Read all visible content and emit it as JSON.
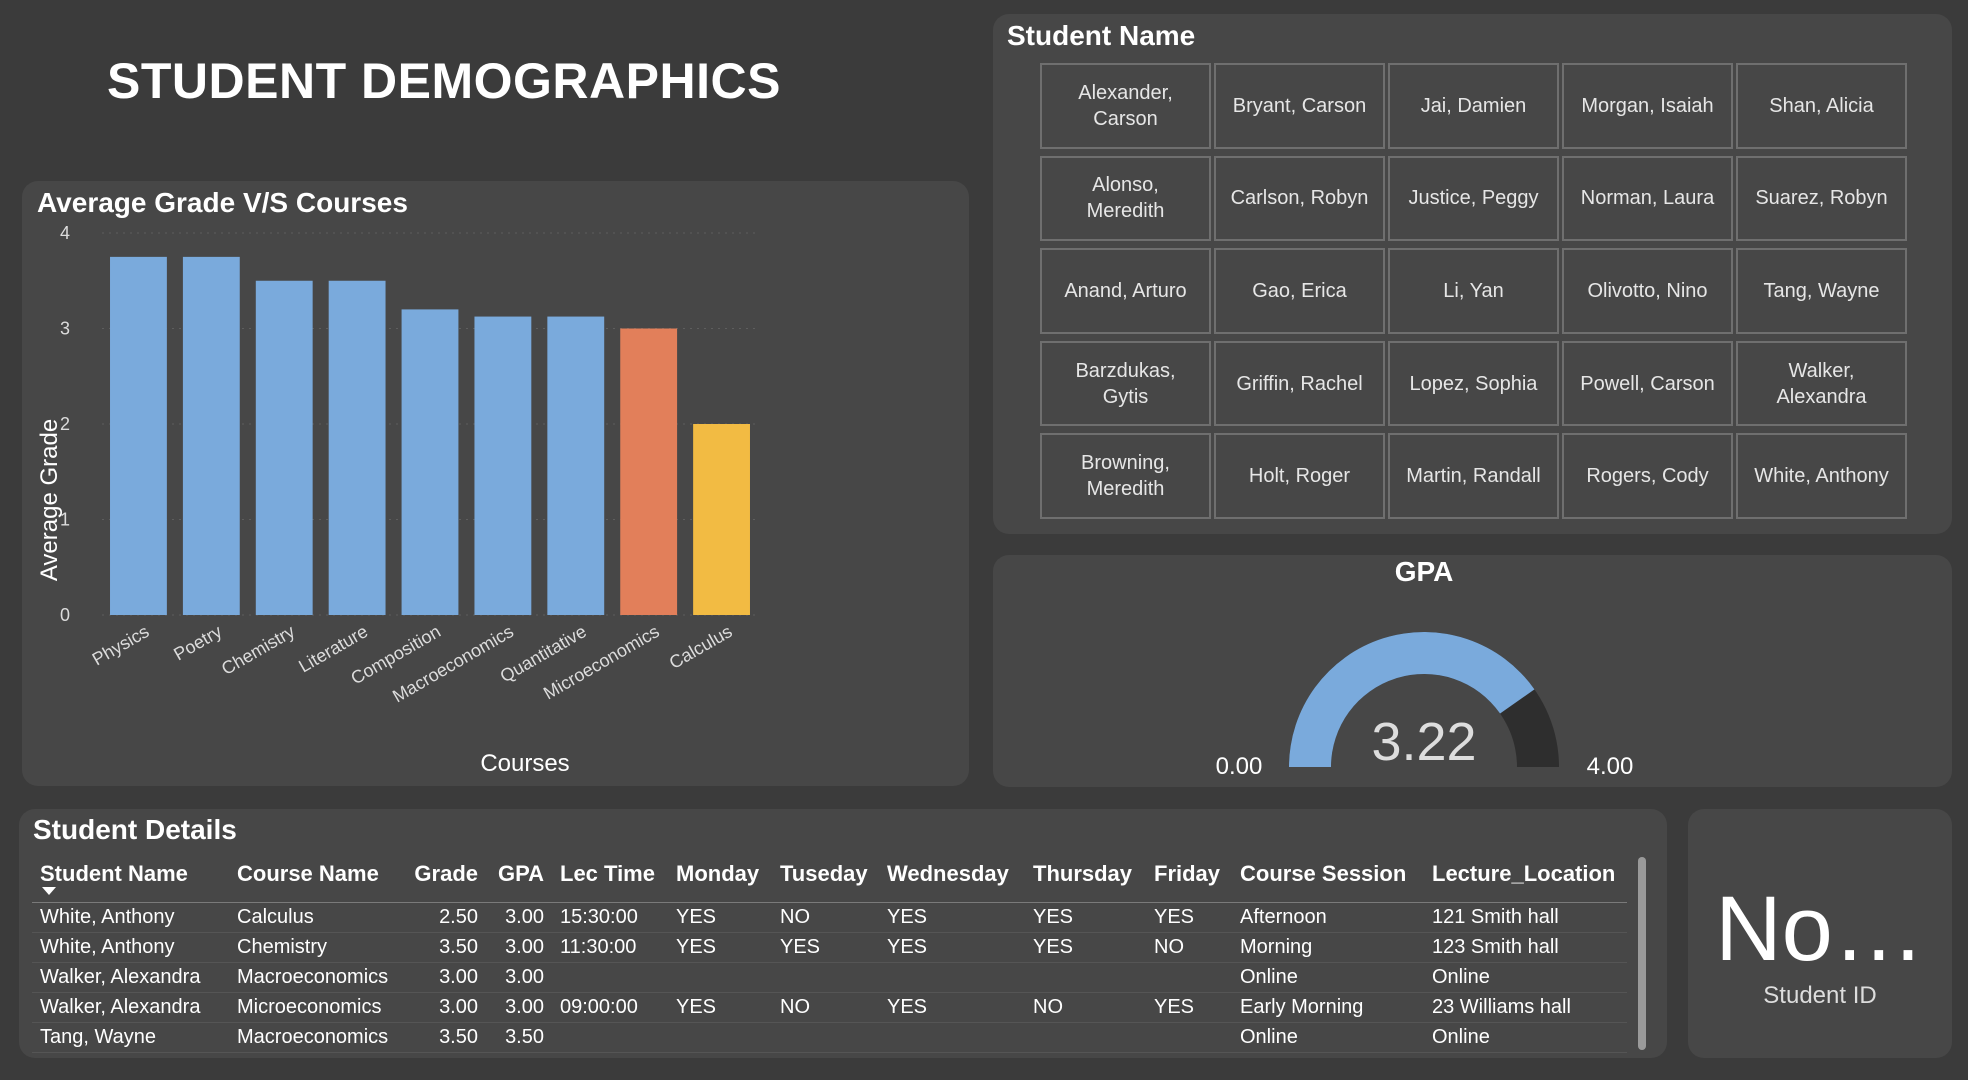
{
  "page_title": "STUDENT DEMOGRAPHICS",
  "colors": {
    "background": "#3b3b3b",
    "panel": "#474747",
    "bar_default": "#7aaadc",
    "bar_highlight_orange": "#e27f5a",
    "bar_highlight_yellow": "#f2bb43",
    "gauge_fill": "#7aaadc",
    "gauge_track": "#2e2e2e"
  },
  "chart_data": {
    "type": "bar",
    "title": "Average Grade V/S Courses",
    "xlabel": "Courses",
    "ylabel": "Average Grade",
    "categories": [
      "Physics",
      "Poetry",
      "Chemistry",
      "Literature",
      "Composition",
      "Macroeconomics",
      "Quantitative",
      "Microeconomics",
      "Calculus"
    ],
    "values": [
      3.75,
      3.75,
      3.5,
      3.5,
      3.2,
      3.125,
      3.125,
      3.0,
      2.0
    ],
    "bar_colors": [
      "#7aaadc",
      "#7aaadc",
      "#7aaadc",
      "#7aaadc",
      "#7aaadc",
      "#7aaadc",
      "#7aaadc",
      "#e27f5a",
      "#f2bb43"
    ],
    "ylim": [
      0,
      4
    ],
    "yticks": [
      0,
      1,
      2,
      3,
      4
    ],
    "grid": true,
    "legend": "none"
  },
  "student_name_slicer": {
    "title": "Student Name",
    "names": [
      "Alexander, Carson",
      "Bryant, Carson",
      "Jai, Damien",
      "Morgan, Isaiah",
      "Shan, Alicia",
      "Alonso, Meredith",
      "Carlson, Robyn",
      "Justice, Peggy",
      "Norman, Laura",
      "Suarez, Robyn",
      "Anand, Arturo",
      "Gao, Erica",
      "Li, Yan",
      "Olivotto, Nino",
      "Tang, Wayne",
      "Barzdukas, Gytis",
      "Griffin, Rachel",
      "Lopez, Sophia",
      "Powell, Carson",
      "Walker, Alexandra",
      "Browning, Meredith",
      "Holt, Roger",
      "Martin, Randall",
      "Rogers, Cody",
      "White, Anthony"
    ]
  },
  "gpa_gauge": {
    "title": "GPA",
    "value": 3.22,
    "value_label": "3.22",
    "min_label": "0.00",
    "max_label": "4.00",
    "min": 0,
    "max": 4
  },
  "student_details": {
    "title": "Student Details",
    "columns": [
      "Student Name",
      "Course Name",
      "Grade",
      "GPA",
      "Lec Time",
      "Monday",
      "Tuseday",
      "Wednesday",
      "Thursday",
      "Friday",
      "Course Session",
      "Lecture_Location"
    ],
    "sorted_column": "Student Name",
    "rows": [
      [
        "White, Anthony",
        "Calculus",
        "2.50",
        "3.00",
        "15:30:00",
        "YES",
        "NO",
        "YES",
        "YES",
        "YES",
        "Afternoon",
        "121 Smith hall"
      ],
      [
        "White, Anthony",
        "Chemistry",
        "3.50",
        "3.00",
        "11:30:00",
        "YES",
        "YES",
        "YES",
        "YES",
        "NO",
        "Morning",
        "123 Smith hall"
      ],
      [
        "Walker, Alexandra",
        "Macroeconomics",
        "3.00",
        "3.00",
        "",
        "",
        "",
        "",
        "",
        "",
        "Online",
        "Online"
      ],
      [
        "Walker, Alexandra",
        "Microeconomics",
        "3.00",
        "3.00",
        "09:00:00",
        "YES",
        "NO",
        "YES",
        "NO",
        "YES",
        "Early Morning",
        "23 Williams hall"
      ],
      [
        "Tang, Wayne",
        "Macroeconomics",
        "3.50",
        "3.50",
        "",
        "",
        "",
        "",
        "",
        "",
        "Online",
        "Online"
      ]
    ]
  },
  "student_id_card": {
    "value": "No…",
    "label": "Student ID"
  }
}
